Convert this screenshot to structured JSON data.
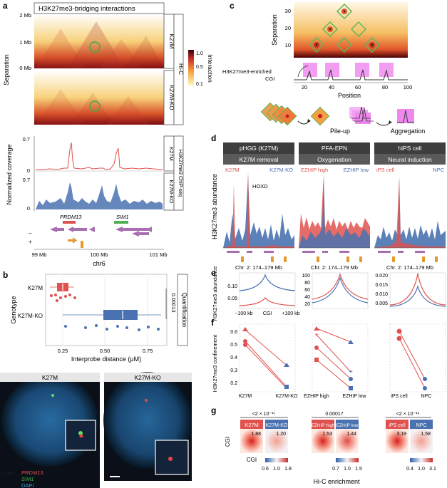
{
  "panel_a": {
    "letter": "a",
    "title": "H3K27me3-bridging interactions",
    "y_ticks": [
      "2 Mb",
      "1 Mb",
      "0 Mb"
    ],
    "y_label": "Separation",
    "strip_k27m": "K27M",
    "strip_k27mko": "K27M-KO",
    "strip_hic": "Hi-C",
    "legend_title": "Interaction",
    "legend_ticks": [
      "1.0",
      "0.5",
      "0.1"
    ],
    "cov_label": "Normalized coverage",
    "cov_ticks_top": [
      "0.7",
      "0"
    ],
    "cov_ticks_bottom": [
      "0.7",
      "0"
    ],
    "cov_strip_k27m": "K27M",
    "cov_strip_k27mko": "K27M-KO",
    "cov_strip_assay": "H3K27me3 ChIP-seq",
    "gene_prdm13": "PRDM13",
    "gene_sim1": "SIM1",
    "strand_minus": "–",
    "strand_plus": "+",
    "x_ticks": [
      "99 Mb",
      "100 Mb",
      "101 Mb"
    ],
    "x_label": "chr6"
  },
  "panel_b": {
    "letter": "b",
    "y_label": "Genotype",
    "categories": [
      "K27M",
      "K27M-KO"
    ],
    "x_ticks": [
      "0.25",
      "0.50",
      "0.75"
    ],
    "x_label": "Interprobe distance (μM)",
    "pvalue": "0.00013",
    "strip": "Quantification",
    "img_label_1": "K27M",
    "img_label_2": "K27M-KO",
    "scale": "2 μm",
    "legend_prdm13": "PRDM13",
    "legend_sim1": "SIM1",
    "legend_dapi": "DAPI"
  },
  "panel_c": {
    "letter": "c",
    "y_label": "Separation",
    "y_ticks": [
      "30",
      "20",
      "10"
    ],
    "track_label_1": "H3K27me3-enriched",
    "track_label_2": "CGI",
    "x_ticks": [
      "20",
      "40",
      "60",
      "80",
      "100"
    ],
    "x_label": "Position",
    "pileup": "Pile-up",
    "aggregation": "Aggregation"
  },
  "panel_d": {
    "letter": "d",
    "y_label": "H3K27me3 abundance",
    "groups": [
      {
        "title": "pHGG (K27M)",
        "subtitle": "K27M removal",
        "left": "K27M",
        "right": "K27M-KO",
        "xlabel": "Chr. 2: 174–179 Mb"
      },
      {
        "title": "PFA-EPN",
        "subtitle": "Oxygenation",
        "left": "EZHIP high",
        "right": "EZHIP low",
        "xlabel": "Chr. 2: 174–179 Mb"
      },
      {
        "title": "hiPS cell",
        "subtitle": "Neural induction",
        "left": "iPS cell",
        "right": "NPC",
        "xlabel": "Chr. 2: 174–179 Mb"
      }
    ],
    "annotation": "HOXD"
  },
  "panel_e": {
    "letter": "e",
    "y_label": "H3K27me3 abundance",
    "yticks_1": [
      "0.10",
      "0.05"
    ],
    "yticks_2": [
      "100",
      "80",
      "60",
      "40",
      "20"
    ],
    "yticks_3": [
      "0.020",
      "0.015",
      "0.010",
      "0.005"
    ],
    "x_ticks": [
      "−100 kb",
      "CGI",
      "+100 kb"
    ]
  },
  "panel_f": {
    "letter": "f",
    "y_label": "H3K27me3 confinement",
    "y_ticks": [
      "0.6",
      "0.5",
      "0.4",
      "0.3",
      "0.2"
    ],
    "xcats": [
      [
        "K27M",
        "K27M-KO"
      ],
      [
        "EZHIP high",
        "EZHIP low"
      ],
      [
        "iPS cell",
        "NPC"
      ]
    ]
  },
  "panel_g": {
    "letter": "g",
    "pvals": [
      "<2 × 10⁻¹⁵",
      "0.00017",
      "<2 × 10⁻¹⁶"
    ],
    "labels": [
      "K27M",
      "K27M-KO",
      "EZHIP high",
      "EZHIP low",
      "iPS cell",
      "NPC"
    ],
    "values": [
      "1.88",
      "1.20",
      "1.53",
      "1.44",
      "3.19",
      "1.58"
    ],
    "axis_label": "CGI",
    "cb1": [
      "0.6",
      "1.0",
      "1.8"
    ],
    "cb2": [
      "0.7",
      "1.0",
      "1.5"
    ],
    "cb3": [
      "0.4",
      "1.0",
      "3.1"
    ],
    "x_title": "Hi-C enrichment"
  },
  "colors": {
    "red": "#e0524f",
    "blue": "#4a72b0",
    "dark": "#3a3a3a",
    "green": "#4caf50",
    "magenta": "#ee7aee"
  }
}
